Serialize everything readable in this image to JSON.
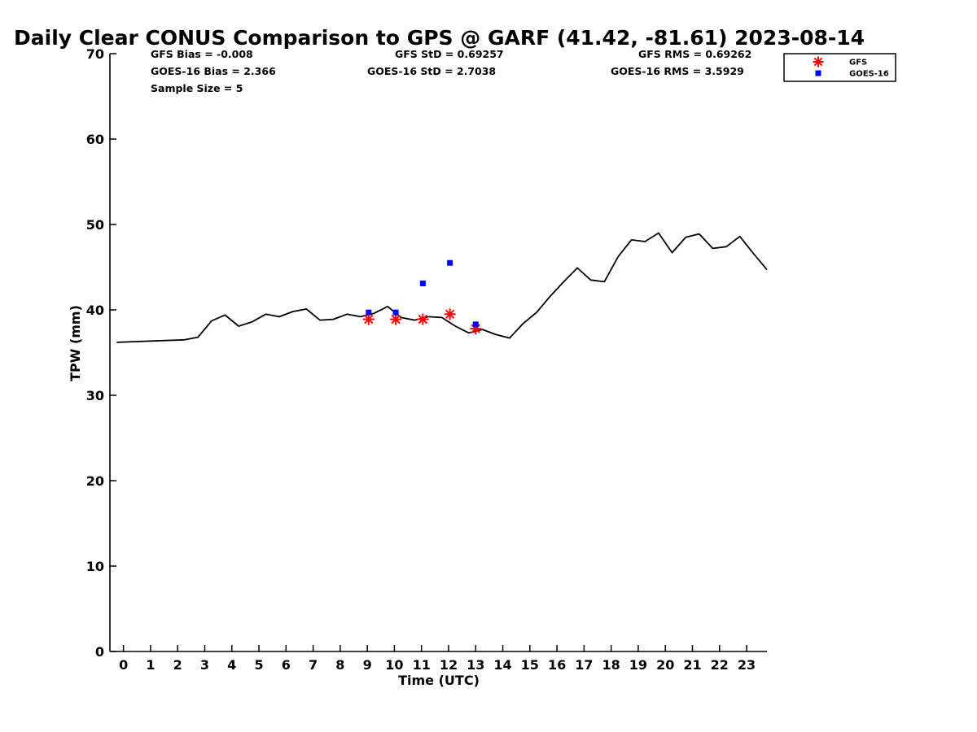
{
  "chart_data": {
    "type": "line",
    "title": "Daily Clear CONUS Comparison to GPS @ GARF (41.42, -81.61) 2023-08-14",
    "xlabel": "Time (UTC)",
    "ylabel": "TPW (mm)",
    "xlim": [
      -0.5,
      23.75
    ],
    "ylim": [
      0,
      70
    ],
    "xticks": [
      0,
      1,
      2,
      3,
      4,
      5,
      6,
      7,
      8,
      9,
      10,
      11,
      12,
      13,
      14,
      15,
      16,
      17,
      18,
      19,
      20,
      21,
      22,
      23
    ],
    "yticks": [
      0,
      10,
      20,
      30,
      40,
      50,
      60,
      70
    ],
    "grid": false,
    "legend_position": "top-right, outside plot area",
    "stats": {
      "gfs_bias": "GFS Bias = -0.008",
      "gfs_std": "GFS StD = 0.69257",
      "gfs_rms": "GFS RMS = 0.69262",
      "goes_bias": "GOES-16 Bias = 2.366",
      "goes_std": "GOES-16 StD = 2.7038",
      "goes_rms": "GOES-16 RMS = 3.5929",
      "sample_size": "Sample Size = 5"
    },
    "series": [
      {
        "name": "GPS",
        "style": "line",
        "color": "#000000",
        "points": [
          [
            -0.25,
            36.2
          ],
          [
            2.25,
            36.5
          ],
          [
            2.75,
            36.8
          ],
          [
            3.25,
            38.7
          ],
          [
            3.75,
            39.4
          ],
          [
            4.25,
            38.1
          ],
          [
            4.75,
            38.6
          ],
          [
            5.25,
            39.5
          ],
          [
            5.75,
            39.2
          ],
          [
            6.25,
            39.8
          ],
          [
            6.75,
            40.1
          ],
          [
            7.25,
            38.8
          ],
          [
            7.75,
            38.9
          ],
          [
            8.25,
            39.5
          ],
          [
            8.75,
            39.2
          ],
          [
            9.25,
            39.6
          ],
          [
            9.75,
            40.4
          ],
          [
            10.25,
            39.1
          ],
          [
            10.75,
            38.8
          ],
          [
            11.25,
            39.2
          ],
          [
            11.75,
            39.1
          ],
          [
            12.25,
            38.1
          ],
          [
            12.75,
            37.3
          ],
          [
            13.25,
            37.7
          ],
          [
            13.75,
            37.1
          ],
          [
            14.25,
            36.7
          ],
          [
            14.75,
            38.4
          ],
          [
            15.25,
            39.7
          ],
          [
            15.75,
            41.6
          ],
          [
            16.25,
            43.3
          ],
          [
            16.75,
            44.9
          ],
          [
            17.25,
            43.5
          ],
          [
            17.75,
            43.3
          ],
          [
            18.25,
            46.2
          ],
          [
            18.75,
            48.2
          ],
          [
            19.25,
            48.0
          ],
          [
            19.75,
            49.0
          ],
          [
            20.25,
            46.7
          ],
          [
            20.75,
            48.5
          ],
          [
            21.25,
            48.9
          ],
          [
            21.75,
            47.2
          ],
          [
            22.25,
            47.4
          ],
          [
            22.75,
            48.6
          ],
          [
            23.25,
            46.6
          ],
          [
            23.75,
            44.7
          ]
        ]
      },
      {
        "name": "GFS",
        "style": "asterisk",
        "color": "#ff0000",
        "points": [
          [
            9.05,
            38.9
          ],
          [
            10.05,
            38.9
          ],
          [
            11.05,
            38.9
          ],
          [
            12.05,
            39.5
          ],
          [
            13.0,
            37.8
          ]
        ]
      },
      {
        "name": "GOES-16",
        "style": "square",
        "color": "#0000ff",
        "points": [
          [
            9.05,
            39.7
          ],
          [
            10.05,
            39.7
          ],
          [
            11.05,
            43.1
          ],
          [
            12.05,
            45.5
          ],
          [
            13.0,
            38.3
          ]
        ]
      }
    ],
    "legend": [
      {
        "label": "GFS",
        "marker": "asterisk",
        "color": "#ff0000"
      },
      {
        "label": "GOES-16",
        "marker": "square",
        "color": "#0000ff"
      }
    ]
  }
}
